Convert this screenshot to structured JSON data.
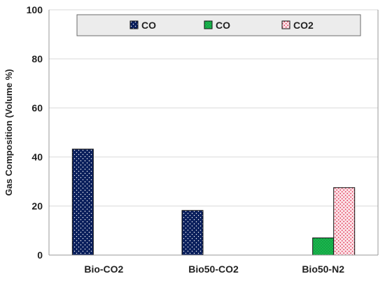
{
  "chart_data": {
    "type": "bar",
    "title": "",
    "xlabel": "",
    "ylabel": "Gas Composition (Volume %)",
    "ylim": [
      0,
      100
    ],
    "yticks": [
      0,
      20,
      40,
      60,
      80,
      100
    ],
    "grid": "horizontal",
    "legend_position": "top",
    "categories": [
      "Bio-CO2",
      "Bio50-CO2",
      "Bio50-N2"
    ],
    "series": [
      {
        "name": "CO",
        "values": [
          43.2,
          18.2,
          null
        ],
        "color": "#0a1f5c",
        "pattern": "dots-white"
      },
      {
        "name": "CO",
        "values": [
          null,
          null,
          7.0
        ],
        "color": "#19b84e",
        "pattern": "dots-dark"
      },
      {
        "name": "CO2",
        "values": [
          null,
          null,
          27.5
        ],
        "color": "#f4a6b5",
        "pattern": "dots-red"
      }
    ]
  }
}
